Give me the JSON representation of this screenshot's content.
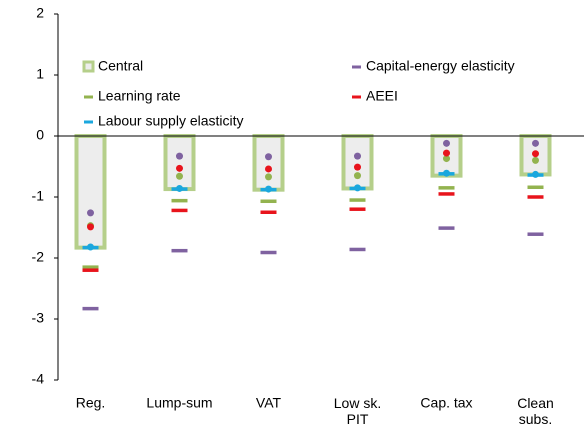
{
  "chart_data": {
    "type": "range-dot",
    "categories": [
      "Reg.",
      "Lump-sum",
      "VAT",
      [
        "Low sk.",
        "PIT"
      ],
      "Cap. tax",
      [
        "Clean",
        "subs."
      ]
    ],
    "central": {
      "name": "Central",
      "color": "#b5cf8a",
      "values": [
        -1.83,
        -0.87,
        -0.88,
        -0.86,
        -0.65,
        -0.63
      ]
    },
    "series": [
      {
        "name": "Capital-energy elasticity",
        "color": "#7f62a0",
        "values": [
          -2.83,
          -1.88,
          -1.91,
          -1.86,
          -1.51,
          -1.61
        ],
        "dot_values": [
          -1.26,
          -0.33,
          -0.34,
          -0.33,
          -0.12,
          -0.12
        ]
      },
      {
        "name": "Learning rate",
        "color": "#93b34f",
        "values": [
          -2.15,
          -1.06,
          -1.07,
          -1.05,
          -0.85,
          -0.84
        ],
        "dot_values": [
          -1.47,
          -0.66,
          -0.67,
          -0.65,
          -0.37,
          -0.4
        ]
      },
      {
        "name": "AEEI",
        "color": "#e8141c",
        "values": [
          -2.2,
          -1.22,
          -1.25,
          -1.2,
          -0.95,
          -1.0
        ],
        "dot_values": [
          -1.49,
          -0.53,
          -0.54,
          -0.51,
          -0.28,
          -0.29
        ]
      },
      {
        "name": "Labour supply elasticity",
        "color": "#1aa7de",
        "values": [
          -1.83,
          -0.87,
          -0.88,
          -0.86,
          -0.62,
          -0.64
        ],
        "dot_values": [
          -1.82,
          -0.86,
          -0.87,
          -0.85,
          -0.61,
          -0.63
        ]
      }
    ],
    "ylim": [
      -4,
      2
    ],
    "yticks": [
      -4,
      -3,
      -2,
      -1,
      0,
      1,
      2
    ]
  }
}
